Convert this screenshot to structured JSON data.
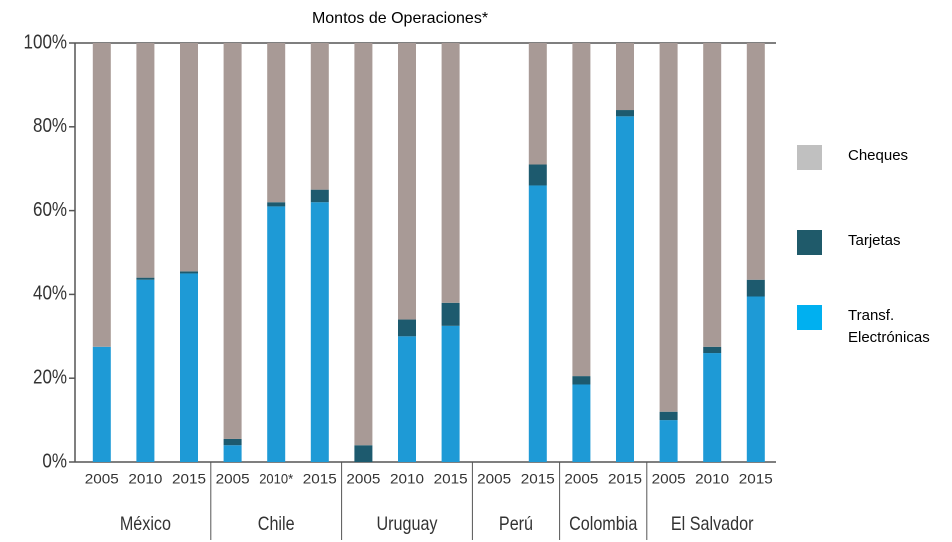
{
  "chart_data": {
    "type": "stacked_bar",
    "title": "Montos de Operaciones*",
    "groups": [
      {
        "label": "México",
        "categories": [
          "2005",
          "2010",
          "2015"
        ]
      },
      {
        "label": "Chile",
        "categories": [
          "2005",
          "2010*",
          "2015"
        ]
      },
      {
        "label": "Uruguay",
        "categories": [
          "2005",
          "2010",
          "2015"
        ]
      },
      {
        "label": "Perú",
        "categories": [
          "2005",
          "2015"
        ]
      },
      {
        "label": "Colombia",
        "categories": [
          "2005",
          "2015"
        ]
      },
      {
        "label": "El Salvador",
        "categories": [
          "2005",
          "2010",
          "2015"
        ]
      }
    ],
    "series": [
      {
        "name": "Transf. Electrónicas",
        "color": "#1e9ad6",
        "legend_color": "#00b0f0",
        "values": [
          27.5,
          43.5,
          45,
          4,
          61,
          62,
          0,
          30,
          32.5,
          null,
          66,
          18.5,
          82.5,
          10,
          26,
          39.5
        ]
      },
      {
        "name": "Tarjetas",
        "color": "#1d5a6e",
        "legend_color": "#1f5a6a",
        "values": [
          0,
          0.5,
          0.5,
          1.5,
          1,
          3,
          4,
          4,
          5.5,
          null,
          5,
          2,
          1.5,
          2,
          1.5,
          4
        ]
      },
      {
        "name": "Cheques",
        "color": "#a89a96",
        "legend_color": "#c0c0c0",
        "values": [
          72.5,
          56,
          54.5,
          94.5,
          38,
          35,
          96,
          66,
          62,
          null,
          29,
          79.5,
          16,
          88,
          72.5,
          56.5
        ]
      }
    ],
    "ylim": [
      0,
      100
    ],
    "yticks": [
      {
        "value": 0,
        "label": "0%"
      },
      {
        "value": 20,
        "label": "20%"
      },
      {
        "value": 40,
        "label": "40%"
      },
      {
        "value": 60,
        "label": "60%"
      },
      {
        "value": 80,
        "label": "80%"
      },
      {
        "value": 100,
        "label": "100%"
      }
    ]
  }
}
